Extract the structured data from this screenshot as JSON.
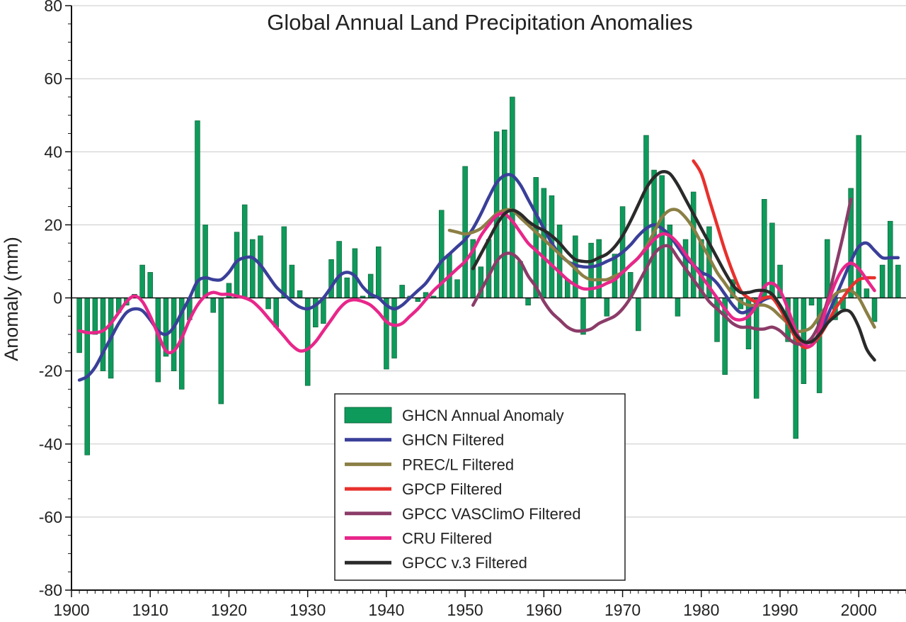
{
  "chart_data": {
    "type": "bar",
    "title": "Global Annual Land Precipitation Anomalies",
    "xlabel": "",
    "ylabel": "Anomaly (mm)",
    "xlim": [
      1900,
      2006
    ],
    "ylim": [
      -80,
      80
    ],
    "x_ticks": [
      1900,
      1910,
      1920,
      1930,
      1940,
      1950,
      1960,
      1970,
      1980,
      1990,
      2000
    ],
    "y_ticks": [
      -80,
      -60,
      -40,
      -20,
      0,
      20,
      40,
      60,
      80
    ],
    "grid": "horizontal",
    "legend_position": "bottom-center",
    "bar_series": {
      "name": "GHCN Annual Anomaly",
      "color": "#0e9a5a",
      "x": [
        1901,
        1902,
        1903,
        1904,
        1905,
        1906,
        1907,
        1908,
        1909,
        1910,
        1911,
        1912,
        1913,
        1914,
        1915,
        1916,
        1917,
        1918,
        1919,
        1920,
        1921,
        1922,
        1923,
        1924,
        1925,
        1926,
        1927,
        1928,
        1929,
        1930,
        1931,
        1932,
        1933,
        1934,
        1935,
        1936,
        1937,
        1938,
        1939,
        1940,
        1941,
        1942,
        1943,
        1944,
        1945,
        1946,
        1947,
        1948,
        1949,
        1950,
        1951,
        1952,
        1953,
        1954,
        1955,
        1956,
        1957,
        1958,
        1959,
        1960,
        1961,
        1962,
        1963,
        1964,
        1965,
        1966,
        1967,
        1968,
        1969,
        1970,
        1971,
        1972,
        1973,
        1974,
        1975,
        1976,
        1977,
        1978,
        1979,
        1980,
        1981,
        1982,
        1983,
        1984,
        1985,
        1986,
        1987,
        1988,
        1989,
        1990,
        1991,
        1992,
        1993,
        1994,
        1995,
        1996,
        1997,
        1998,
        1999,
        2000,
        2001,
        2002,
        2003,
        2004,
        2005
      ],
      "values": [
        -15,
        -43,
        -10,
        -20,
        -22,
        -4,
        -2,
        1,
        9,
        7,
        -23,
        -16,
        -20,
        -25,
        -6,
        48.5,
        20,
        -4,
        -29,
        4,
        18,
        25.5,
        16,
        17,
        -3,
        -8,
        19.5,
        9,
        2,
        -24,
        -8,
        -7,
        10.5,
        15.5,
        5.5,
        13.5,
        0.5,
        6.5,
        14,
        -19.5,
        -16.5,
        3.5,
        0.5,
        -1,
        1.5,
        0.5,
        24,
        12,
        5,
        36,
        16,
        8.5,
        16,
        45.5,
        46,
        55,
        10,
        -2,
        33,
        30,
        28,
        20,
        5,
        17,
        -10,
        15,
        16,
        -5,
        12,
        25,
        7,
        -9,
        44.5,
        35,
        33.5,
        20,
        -5,
        16,
        29,
        16,
        19.5,
        -12,
        -21,
        5,
        -3,
        -14,
        -27.5,
        27,
        20.5,
        9,
        -12,
        -38.5,
        -23.5,
        -2,
        -26,
        16,
        -6,
        -3,
        30,
        44.5,
        2.5,
        -6.5,
        9,
        21,
        9
      ]
    },
    "series": [
      {
        "name": "GHCN Filtered",
        "color": "#3a3f99",
        "x": [
          1901,
          1902,
          1903,
          1904,
          1905,
          1906,
          1907,
          1908,
          1909,
          1910,
          1911,
          1912,
          1913,
          1914,
          1915,
          1916,
          1917,
          1918,
          1919,
          1920,
          1921,
          1922,
          1923,
          1924,
          1925,
          1926,
          1927,
          1928,
          1929,
          1930,
          1931,
          1932,
          1933,
          1934,
          1935,
          1936,
          1937,
          1938,
          1939,
          1940,
          1941,
          1942,
          1943,
          1944,
          1945,
          1946,
          1947,
          1948,
          1949,
          1950,
          1951,
          1952,
          1953,
          1954,
          1955,
          1956,
          1957,
          1958,
          1959,
          1960,
          1961,
          1962,
          1963,
          1964,
          1965,
          1966,
          1967,
          1968,
          1969,
          1970,
          1971,
          1972,
          1973,
          1974,
          1975,
          1976,
          1977,
          1978,
          1979,
          1980,
          1981,
          1982,
          1983,
          1984,
          1985,
          1986,
          1987,
          1988,
          1989,
          1990,
          1991,
          1992,
          1993,
          1994,
          1995,
          1996,
          1997,
          1998,
          1999,
          2000,
          2001,
          2002,
          2003,
          2004,
          2005
        ],
        "values": [
          -22.5,
          -21.5,
          -19,
          -15,
          -11,
          -7,
          -4,
          -3,
          -3.5,
          -6,
          -9,
          -10,
          -8,
          -4,
          0,
          4.5,
          5.5,
          5,
          5,
          7,
          10,
          11,
          11,
          9,
          6,
          3,
          1,
          -1,
          -2.5,
          -3,
          -2,
          0,
          3,
          6,
          7,
          6,
          3,
          1,
          0,
          -2,
          -3,
          -2,
          0,
          2,
          4,
          7,
          10,
          12,
          14,
          16,
          19,
          23,
          27.5,
          31.5,
          33.5,
          33.5,
          31,
          27,
          23,
          19,
          15,
          12,
          10,
          9,
          8.5,
          8.5,
          9,
          10,
          11,
          12.5,
          14.5,
          17,
          19,
          20,
          19,
          17,
          14,
          11,
          9,
          7,
          6,
          4,
          1,
          -2,
          -4,
          -3.5,
          -2,
          -0.5,
          0,
          -2,
          -6,
          -10,
          -13,
          -13,
          -10,
          -5,
          0,
          5,
          10,
          14,
          15,
          13,
          11,
          11,
          11
        ]
      },
      {
        "name": "PREC/L Filtered",
        "color": "#8b7f45",
        "x": [
          1948,
          1949,
          1950,
          1951,
          1952,
          1953,
          1954,
          1955,
          1956,
          1957,
          1958,
          1959,
          1960,
          1961,
          1962,
          1963,
          1964,
          1965,
          1966,
          1967,
          1968,
          1969,
          1970,
          1971,
          1972,
          1973,
          1974,
          1975,
          1976,
          1977,
          1978,
          1979,
          1980,
          1981,
          1982,
          1983,
          1984,
          1985,
          1986,
          1987,
          1988,
          1989,
          1990,
          1991,
          1992,
          1993,
          1994,
          1995,
          1996,
          1997,
          1998,
          1999,
          2000,
          2001,
          2002
        ],
        "values": [
          18.5,
          18,
          17.5,
          18,
          19,
          21,
          23,
          24,
          24,
          22,
          20,
          18,
          16,
          14,
          12,
          10,
          8,
          6,
          5,
          5,
          5,
          6,
          7,
          9,
          11,
          14,
          18,
          22,
          24,
          24,
          22,
          19,
          15,
          11,
          7,
          4,
          1,
          -1,
          -2,
          -2,
          -2,
          -3,
          -5,
          -7,
          -9,
          -9,
          -8,
          -5,
          -2,
          1,
          2,
          2,
          0,
          -4,
          -8
        ]
      },
      {
        "name": "GPCP Filtered",
        "color": "#e8302c",
        "x": [
          1979,
          1980,
          1981,
          1982,
          1983,
          1984,
          1985,
          1986,
          1987,
          1988,
          1989,
          1990,
          1991,
          1992,
          1993,
          1994,
          1995,
          1996,
          1997,
          1998,
          1999,
          2000,
          2001,
          2002
        ],
        "values": [
          37.5,
          34,
          27,
          20,
          13,
          7,
          2,
          0,
          -1,
          0,
          0,
          -3,
          -7,
          -11,
          -13.5,
          -13,
          -10.5,
          -7,
          -3,
          0,
          3,
          5,
          5.5,
          5.5
        ]
      },
      {
        "name": "GPCC VASClimO Filtered",
        "color": "#8b3c68",
        "x": [
          1951,
          1952,
          1953,
          1954,
          1955,
          1956,
          1957,
          1958,
          1959,
          1960,
          1961,
          1962,
          1963,
          1964,
          1965,
          1966,
          1967,
          1968,
          1969,
          1970,
          1971,
          1972,
          1973,
          1974,
          1975,
          1976,
          1977,
          1978,
          1979,
          1980,
          1981,
          1982,
          1983,
          1984,
          1985,
          1986,
          1987,
          1988,
          1989,
          1990,
          1991,
          1992,
          1993,
          1994,
          1995,
          1996,
          1997,
          1998,
          1999
        ],
        "values": [
          -2,
          2,
          6,
          10,
          12,
          12,
          10,
          6,
          3,
          -1,
          -4,
          -6,
          -8,
          -9,
          -9,
          -8.5,
          -7,
          -6,
          -5,
          -3,
          0,
          4,
          8,
          12,
          14,
          14,
          11,
          8,
          5,
          2,
          -1,
          -3,
          -5,
          -7,
          -8,
          -8,
          -8.5,
          -8.5,
          -8,
          -9,
          -11,
          -12.5,
          -12.5,
          -11,
          -7,
          -1,
          8,
          17,
          27
        ]
      },
      {
        "name": "CRU Filtered",
        "color": "#e8268a",
        "x": [
          1901,
          1902,
          1903,
          1904,
          1905,
          1906,
          1907,
          1908,
          1909,
          1910,
          1911,
          1912,
          1913,
          1914,
          1915,
          1916,
          1917,
          1918,
          1919,
          1920,
          1921,
          1922,
          1923,
          1924,
          1925,
          1926,
          1927,
          1928,
          1929,
          1930,
          1931,
          1932,
          1933,
          1934,
          1935,
          1936,
          1937,
          1938,
          1939,
          1940,
          1941,
          1942,
          1943,
          1944,
          1945,
          1946,
          1947,
          1948,
          1949,
          1950,
          1951,
          1952,
          1953,
          1954,
          1955,
          1956,
          1957,
          1958,
          1959,
          1960,
          1961,
          1962,
          1963,
          1964,
          1965,
          1966,
          1967,
          1968,
          1969,
          1970,
          1971,
          1972,
          1973,
          1974,
          1975,
          1976,
          1977,
          1978,
          1979,
          1980,
          1981,
          1982,
          1983,
          1984,
          1985,
          1986,
          1987,
          1988,
          1989,
          1990,
          1991,
          1992,
          1993,
          1994,
          1995,
          1996,
          1997,
          1998,
          1999,
          2000,
          2001,
          2002
        ],
        "values": [
          -9,
          -9.5,
          -9.5,
          -9,
          -7,
          -4,
          -1,
          0.5,
          -1,
          -5,
          -10,
          -14.5,
          -14.5,
          -11,
          -6,
          -2,
          0.5,
          1.5,
          1,
          1,
          0.5,
          0,
          -1,
          -3,
          -5.5,
          -8,
          -10.5,
          -13,
          -14.5,
          -14,
          -12,
          -9,
          -6,
          -3,
          -1,
          -0.5,
          -1,
          -2,
          -4,
          -6.5,
          -7.5,
          -7,
          -5,
          -3,
          -0.5,
          2,
          4,
          6,
          8,
          10,
          13,
          17,
          20,
          22.5,
          23,
          21,
          18,
          15,
          13,
          11,
          9,
          7,
          5,
          3.5,
          2.5,
          2.5,
          3,
          4,
          5,
          7,
          9,
          11,
          13.5,
          16,
          17.5,
          17,
          15,
          12,
          9,
          6,
          3,
          0,
          -3,
          -5.5,
          -6,
          -5,
          -2,
          3,
          4,
          2,
          -3,
          -9,
          -12.5,
          -13,
          -9,
          -2,
          4,
          8,
          9.5,
          8,
          5,
          2
        ]
      },
      {
        "name": "GPCC v.3 Filtered",
        "color": "#2a2a2a",
        "x": [
          1951,
          1952,
          1953,
          1954,
          1955,
          1956,
          1957,
          1958,
          1959,
          1960,
          1961,
          1962,
          1963,
          1964,
          1965,
          1966,
          1967,
          1968,
          1969,
          1970,
          1971,
          1972,
          1973,
          1974,
          1975,
          1976,
          1977,
          1978,
          1979,
          1980,
          1981,
          1982,
          1983,
          1984,
          1985,
          1986,
          1987,
          1988,
          1989,
          1990,
          1991,
          1992,
          1993,
          1994,
          1995,
          1996,
          1997,
          1998,
          1999,
          2000,
          2001,
          2002
        ],
        "values": [
          8,
          12,
          16,
          20,
          23,
          24,
          23,
          21,
          19.5,
          18.5,
          17,
          15,
          12.5,
          10.5,
          10,
          10,
          11,
          12,
          14,
          17,
          21,
          25.5,
          30,
          33,
          34.5,
          34,
          31,
          27,
          23,
          19,
          15,
          11,
          7,
          3.5,
          1.5,
          1.5,
          2,
          2,
          1,
          -2,
          -6,
          -10,
          -12,
          -12,
          -10,
          -7,
          -5,
          -3.5,
          -4,
          -8,
          -14,
          -17
        ]
      }
    ]
  }
}
